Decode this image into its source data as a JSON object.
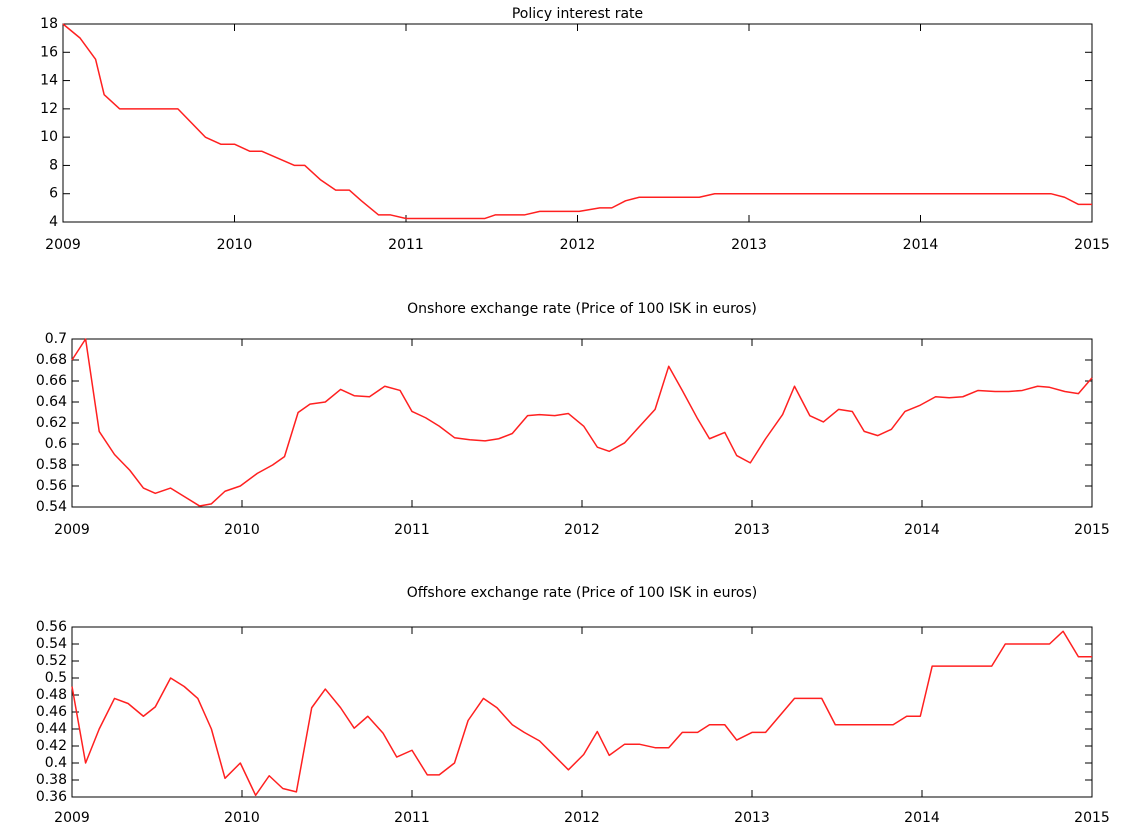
{
  "chart_data": [
    {
      "type": "line",
      "title": "Policy interest rate",
      "color": "#ff2020",
      "x": [
        2009.0,
        2009.1,
        2009.19,
        2009.24,
        2009.33,
        2009.67,
        2009.83,
        2009.92,
        2010.0,
        2010.09,
        2010.16,
        2010.35,
        2010.41,
        2010.5,
        2010.59,
        2010.67,
        2010.74,
        2010.84,
        2010.91,
        2011.0,
        2011.46,
        2011.52,
        2011.69,
        2011.78,
        2012.01,
        2012.13,
        2012.2,
        2012.28,
        2012.36,
        2012.71,
        2012.8,
        2014.76,
        2014.84,
        2014.92,
        2015.0
      ],
      "values": [
        18,
        17,
        15.5,
        13,
        12,
        12,
        10,
        9.5,
        9.5,
        9,
        9,
        8,
        8,
        7,
        6.25,
        6.25,
        5.5,
        4.5,
        4.5,
        4.25,
        4.25,
        4.5,
        4.5,
        4.75,
        4.75,
        5,
        5,
        5.5,
        5.75,
        5.75,
        6,
        6,
        5.75,
        5.25,
        5.25
      ],
      "xlim": [
        2009,
        2015
      ],
      "xticks": [
        2009,
        2010,
        2011,
        2012,
        2013,
        2014,
        2015
      ],
      "ylim": [
        4,
        18
      ],
      "yticks": [
        4,
        6,
        8,
        10,
        12,
        14,
        16,
        18
      ]
    },
    {
      "type": "line",
      "title": "Onshore exchange rate (Price of 100 ISK in euros)",
      "color": "#ff2020",
      "x": [
        2009.0,
        2009.08,
        2009.16,
        2009.25,
        2009.34,
        2009.42,
        2009.49,
        2009.58,
        2009.66,
        2009.75,
        2009.82,
        2009.9,
        2009.99,
        2010.09,
        2010.18,
        2010.25,
        2010.33,
        2010.4,
        2010.49,
        2010.58,
        2010.66,
        2010.75,
        2010.84,
        2010.93,
        2011.0,
        2011.08,
        2011.16,
        2011.25,
        2011.34,
        2011.43,
        2011.51,
        2011.59,
        2011.68,
        2011.75,
        2011.84,
        2011.92,
        2012.01,
        2012.09,
        2012.16,
        2012.25,
        2012.34,
        2012.43,
        2012.51,
        2012.59,
        2012.68,
        2012.75,
        2012.84,
        2012.91,
        2012.99,
        2013.08,
        2013.18,
        2013.25,
        2013.34,
        2013.42,
        2013.51,
        2013.59,
        2013.66,
        2013.74,
        2013.82,
        2013.9,
        2013.99,
        2014.08,
        2014.16,
        2014.24,
        2014.33,
        2014.43,
        2014.51,
        2014.59,
        2014.68,
        2014.75,
        2014.84,
        2014.92,
        2015.0
      ],
      "values": [
        0.68,
        0.7,
        0.612,
        0.59,
        0.575,
        0.558,
        0.553,
        0.558,
        0.55,
        0.541,
        0.543,
        0.555,
        0.56,
        0.572,
        0.58,
        0.588,
        0.63,
        0.638,
        0.64,
        0.652,
        0.646,
        0.645,
        0.655,
        0.651,
        0.631,
        0.625,
        0.617,
        0.606,
        0.604,
        0.603,
        0.605,
        0.61,
        0.627,
        0.628,
        0.627,
        0.629,
        0.617,
        0.597,
        0.593,
        0.601,
        0.617,
        0.633,
        0.674,
        0.651,
        0.624,
        0.605,
        0.611,
        0.589,
        0.582,
        0.605,
        0.628,
        0.655,
        0.627,
        0.621,
        0.633,
        0.631,
        0.612,
        0.608,
        0.614,
        0.631,
        0.637,
        0.645,
        0.644,
        0.645,
        0.651,
        0.65,
        0.65,
        0.651,
        0.655,
        0.654,
        0.65,
        0.648,
        0.663
      ],
      "xlim": [
        2009,
        2015
      ],
      "xticks": [
        2009,
        2010,
        2011,
        2012,
        2013,
        2014,
        2015
      ],
      "ylim": [
        0.54,
        0.7
      ],
      "yticks": [
        0.54,
        0.56,
        0.58,
        0.6,
        0.62,
        0.64,
        0.66,
        0.68,
        0.7
      ]
    },
    {
      "type": "line",
      "title": "Offshore exchange rate (Price of 100 ISK in euros)",
      "color": "#ff2020",
      "x": [
        2009.0,
        2009.08,
        2009.16,
        2009.25,
        2009.33,
        2009.42,
        2009.49,
        2009.58,
        2009.66,
        2009.74,
        2009.82,
        2009.9,
        2009.99,
        2010.08,
        2010.16,
        2010.24,
        2010.32,
        2010.41,
        2010.49,
        2010.58,
        2010.66,
        2010.74,
        2010.83,
        2010.91,
        2011.0,
        2011.09,
        2011.16,
        2011.25,
        2011.33,
        2011.42,
        2011.5,
        2011.59,
        2011.66,
        2011.75,
        2011.84,
        2011.92,
        2012.01,
        2012.09,
        2012.16,
        2012.25,
        2012.34,
        2012.43,
        2012.51,
        2012.59,
        2012.68,
        2012.75,
        2012.84,
        2012.91,
        2013.0,
        2013.08,
        2013.25,
        2013.41,
        2013.49,
        2013.83,
        2013.91,
        2013.99,
        2014.06,
        2014.41,
        2014.49,
        2014.75,
        2014.83,
        2014.92,
        2015.0
      ],
      "values": [
        0.49,
        0.4,
        0.44,
        0.476,
        0.47,
        0.455,
        0.466,
        0.5,
        0.49,
        0.476,
        0.44,
        0.382,
        0.4,
        0.362,
        0.385,
        0.37,
        0.366,
        0.465,
        0.487,
        0.465,
        0.441,
        0.455,
        0.435,
        0.407,
        0.415,
        0.386,
        0.386,
        0.4,
        0.45,
        0.476,
        0.465,
        0.445,
        0.436,
        0.426,
        0.408,
        0.392,
        0.41,
        0.437,
        0.409,
        0.422,
        0.422,
        0.418,
        0.418,
        0.436,
        0.436,
        0.445,
        0.445,
        0.427,
        0.436,
        0.436,
        0.476,
        0.476,
        0.445,
        0.445,
        0.455,
        0.455,
        0.514,
        0.514,
        0.54,
        0.54,
        0.555,
        0.525,
        0.525
      ],
      "xlim": [
        2009,
        2015
      ],
      "xticks": [
        2009,
        2010,
        2011,
        2012,
        2013,
        2014,
        2015
      ],
      "ylim": [
        0.36,
        0.56
      ],
      "yticks": [
        0.36,
        0.38,
        0.4,
        0.42,
        0.44,
        0.46,
        0.48,
        0.5,
        0.52,
        0.54,
        0.56
      ]
    }
  ]
}
